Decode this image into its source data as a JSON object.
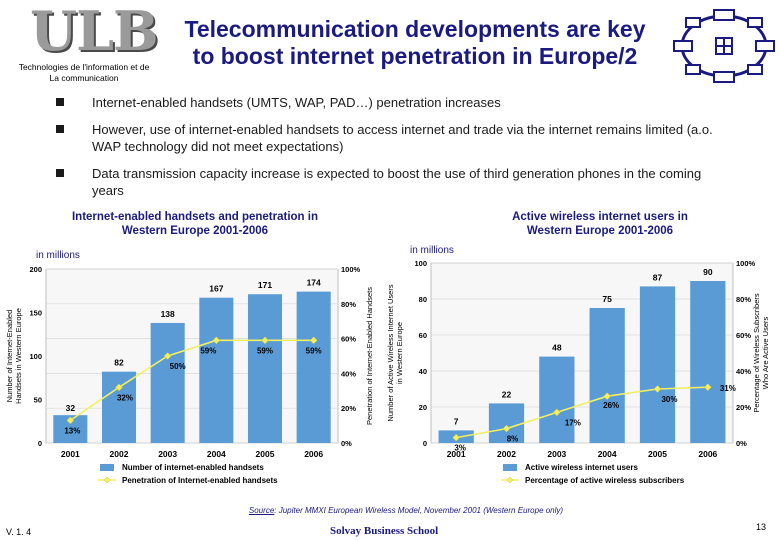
{
  "header": {
    "logo_text": "ULB",
    "logo_caption_line1": "Technologies de l'information et de",
    "logo_caption_line2": "La communication",
    "title_line1": "Telecommunication developments are key",
    "title_line2": "to boost internet penetration in Europe/2"
  },
  "bullets": [
    "Internet-enabled handsets (UMTS, WAP, PAD…) penetration increases",
    "However, use of internet-enabled handsets to access internet and trade via the internet remains limited (a.o. WAP technology did not meet expectations)",
    "Data transmission capacity increase is expected to boost the use of third generation phones in the coming years"
  ],
  "colors": {
    "bar": "#5b9bd5",
    "line": "#f2ef63",
    "grid": "#d9d9d9",
    "title": "#1a1a80"
  },
  "chart_data": [
    {
      "type": "bar",
      "title_line1": "Internet-enabled handsets and penetration in",
      "title_line2": "Western Europe 2001-2006",
      "unit_label": "in millions",
      "categories": [
        "2001",
        "2002",
        "2003",
        "2004",
        "2005",
        "2006"
      ],
      "ylim": [
        0,
        200
      ],
      "yticks": [
        "0",
        "50",
        "100",
        "150",
        "200"
      ],
      "y2lim": [
        0,
        100
      ],
      "y2ticks": [
        "0%",
        "20%",
        "40%",
        "60%",
        "80%",
        "100%"
      ],
      "ylabel_line1": "Number of Internet-Enabled",
      "ylabel_line2": "Handsets in Western Europe",
      "y2label": "Penetration of Internet-Enabled Handsets",
      "series": [
        {
          "name": "Number of internet-enabled handsets",
          "kind": "bar",
          "values": [
            32,
            82,
            138,
            167,
            171,
            174
          ],
          "labels": [
            "32",
            "82",
            "138",
            "167",
            "171",
            "174"
          ]
        },
        {
          "name": "Penetration of Internet-enabled handsets",
          "kind": "line",
          "axis": "right",
          "values": [
            13,
            32,
            50,
            59,
            59,
            59
          ],
          "labels": [
            "13%",
            "32%",
            "50%",
            "59%",
            "59%",
            "59%"
          ]
        }
      ]
    },
    {
      "type": "bar",
      "title_line1": "Active wireless internet users in",
      "title_line2": "Western Europe 2001-2006",
      "unit_label": "in millions",
      "categories": [
        "2001",
        "2002",
        "2003",
        "2004",
        "2005",
        "2006"
      ],
      "ylim": [
        0,
        100
      ],
      "yticks": [
        "0",
        "20",
        "40",
        "60",
        "80",
        "100"
      ],
      "y2lim": [
        0,
        100
      ],
      "y2ticks": [
        "0%",
        "20%",
        "40%",
        "60%",
        "80%",
        "100%"
      ],
      "ylabel_line1": "Number of Active Wireless Internet Users",
      "ylabel_line2": "in Western Europe",
      "y2label_line1": "Percentage of Wireless Subscribers",
      "y2label_line2": "Who Are Active Users",
      "series": [
        {
          "name": "Active wireless internet users",
          "kind": "bar",
          "values": [
            7,
            22,
            48,
            75,
            87,
            90
          ],
          "labels": [
            "7",
            "22",
            "48",
            "75",
            "87",
            "90"
          ]
        },
        {
          "name": "Percentage of active wireless subscribers",
          "kind": "line",
          "axis": "right",
          "values": [
            3,
            8,
            17,
            26,
            30,
            31
          ],
          "labels": [
            "3%",
            "8%",
            "17%",
            "26%",
            "30%",
            "31%"
          ]
        }
      ]
    }
  ],
  "footer": {
    "source_word": "Source",
    "source_text": ": Jupiter MMXI European Wireless Model, November 2001 (Western Europe only)",
    "version": "V. 1. 4",
    "school": "Solvay Business School",
    "page": "13"
  }
}
